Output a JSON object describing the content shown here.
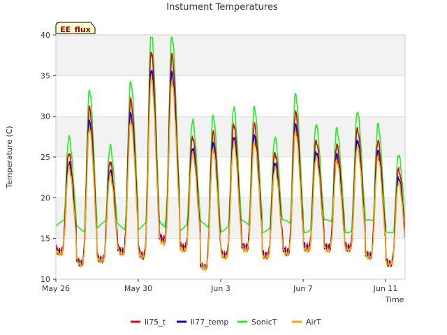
{
  "chart_data": {
    "type": "line",
    "title": "Instument Temperatures",
    "xlabel": "Time",
    "ylabel": "Temperature (C)",
    "badge": "EE_flux",
    "ylim": [
      10,
      40
    ],
    "xlim_days": [
      0,
      16.95
    ],
    "yticks": [
      10,
      15,
      20,
      25,
      30,
      35,
      40
    ],
    "xticks": [
      {
        "day": 0,
        "label": "May 26"
      },
      {
        "day": 4,
        "label": "May 30"
      },
      {
        "day": 8,
        "label": "Jun 3"
      },
      {
        "day": 12,
        "label": "Jun 7"
      },
      {
        "day": 16,
        "label": "Jun 11"
      }
    ],
    "grid": true,
    "legend": "bottom-center",
    "daily_min": [
      13.5,
      12.0,
      12.5,
      13.5,
      13.0,
      15.0,
      14.0,
      11.5,
      13.0,
      14.0,
      13.0,
      13.5,
      14.0,
      14.0,
      14.0,
      13.0,
      12.0
    ],
    "daily_max": [
      25.5,
      31.0,
      24.5,
      32.0,
      38.0,
      37.5,
      27.5,
      28.0,
      29.0,
      29.0,
      25.5,
      30.5,
      27.0,
      26.5,
      28.5,
      27.0,
      23.5
    ],
    "series": [
      {
        "name": "li75_t",
        "color": "#e8000b",
        "offset": 0.0,
        "amp": 1.0
      },
      {
        "name": "li77_temp",
        "color": "#0000dd",
        "offset": -0.2,
        "amp": 0.92
      },
      {
        "name": "SonicT",
        "color": "#22ee22",
        "offset": 1.3,
        "amp": 1.05
      },
      {
        "name": "AirT",
        "color": "#ffa500",
        "offset": -0.3,
        "amp": 0.88
      }
    ]
  }
}
